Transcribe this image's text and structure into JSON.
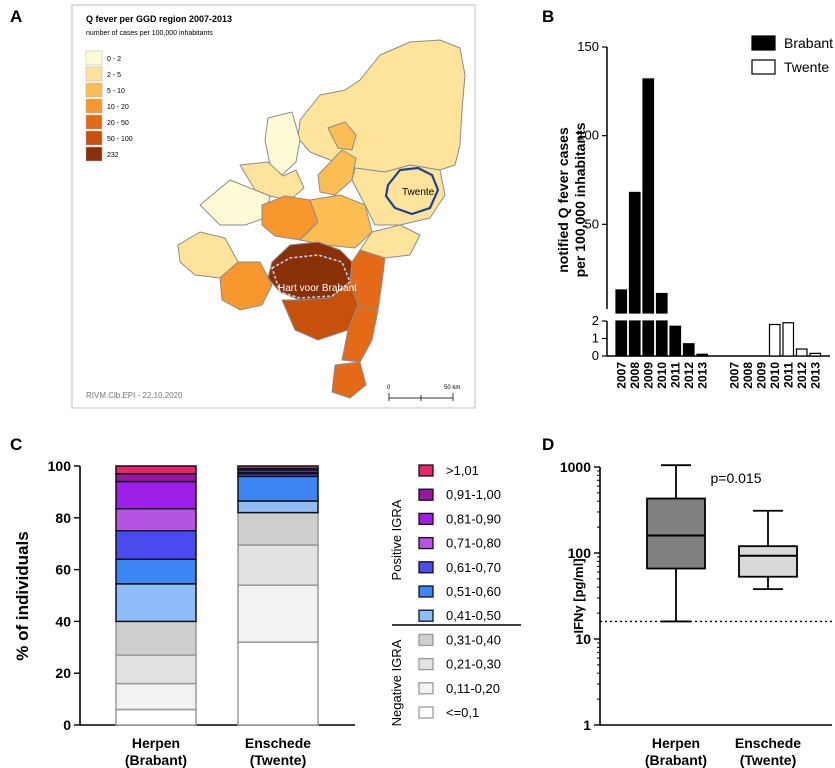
{
  "panel_letters": {
    "a": "A",
    "b": "B",
    "c": "C",
    "d": "D"
  },
  "map": {
    "title": "Q fever per GGD region 2007-2013",
    "subtitle": "number of cases per 100,000 inhabitants",
    "legend": [
      {
        "label": "0 - 2",
        "color": "#fffbd6"
      },
      {
        "label": "2 - 5",
        "color": "#fde49a"
      },
      {
        "label": "5 - 10",
        "color": "#fcbe53"
      },
      {
        "label": "10 - 20",
        "color": "#f7972e"
      },
      {
        "label": "20 - 50",
        "color": "#e46a17"
      },
      {
        "label": "50 - 100",
        "color": "#c7500b"
      },
      {
        "label": "232",
        "color": "#8a3007"
      }
    ],
    "label_twente": "Twente",
    "label_brabant": "Hart voor Brabant",
    "credit": "RIVM.Clb.EPI - 22.10.2020",
    "scale_start": "0",
    "scale_end": "50 km"
  },
  "chart_data": [
    {
      "panel": "B",
      "type": "bar",
      "ylabel": "notified Q fever cases\nper 100,000 inhabitants",
      "broken_axis": true,
      "ylim_lower": [
        0,
        2
      ],
      "ylim_upper": [
        0,
        150
      ],
      "yticks_lower": [
        0,
        1,
        2
      ],
      "yticks_upper": [
        50,
        100,
        150
      ],
      "categories": [
        "2007",
        "2008",
        "2009",
        "2010",
        "2011",
        "2012",
        "2013"
      ],
      "series": [
        {
          "name": "Brabant",
          "color": "#000000",
          "values": [
            13,
            68,
            132,
            11,
            1.7,
            0.7,
            0.1
          ]
        },
        {
          "name": "Twente",
          "color": "#ffffff",
          "values": [
            0,
            0,
            0,
            1.8,
            1.9,
            0.4,
            0.15
          ]
        }
      ]
    },
    {
      "panel": "C",
      "type": "bar",
      "stacked": true,
      "ylabel": "% of individuals",
      "ylim": [
        0,
        100
      ],
      "yticks": [
        0,
        20,
        40,
        60,
        80,
        100
      ],
      "categories": [
        "Herpen\n(Brabant)",
        "Enschede\n(Twente)"
      ],
      "group_labels": {
        "positive": "Positive IGRA",
        "negative": "Negative IGRA"
      },
      "series": [
        {
          "name": "<=0,1",
          "color": "#ffffff",
          "values": [
            6,
            32
          ]
        },
        {
          "name": "0,11-0,20",
          "color": "#f2f2f2",
          "values": [
            10,
            22
          ]
        },
        {
          "name": "0,21-0,30",
          "color": "#e2e2e2",
          "values": [
            11,
            15.5
          ]
        },
        {
          "name": "0,31-0,40",
          "color": "#cfcfcf",
          "values": [
            13,
            12.5
          ]
        },
        {
          "name": "0,41-0,50",
          "color": "#8fbdfa",
          "values": [
            14.5,
            4.5
          ]
        },
        {
          "name": "0,51-0,60",
          "color": "#3d85f2",
          "values": [
            9.5,
            9.5
          ]
        },
        {
          "name": "0,61-0,70",
          "color": "#4b4bf0",
          "values": [
            11,
            1
          ]
        },
        {
          "name": "0,71-0,80",
          "color": "#b553e3",
          "values": [
            8.5,
            0.5
          ]
        },
        {
          "name": "0,81-0,90",
          "color": "#9e1ee8",
          "values": [
            10.5,
            1
          ]
        },
        {
          "name": "0,91-1,00",
          "color": "#9a17a6",
          "values": [
            3,
            0.5
          ]
        },
        {
          "name": ">1,01",
          "color": "#e8246e",
          "values": [
            3,
            1
          ]
        }
      ]
    },
    {
      "panel": "D",
      "type": "box",
      "ylabel": "IFNγ [pg/ml]",
      "yscale": "log",
      "ylim": [
        1,
        1000
      ],
      "yticks": [
        1,
        10,
        100,
        1000
      ],
      "annotation": "p=0.015",
      "threshold": 16,
      "categories": [
        "Herpen\n(Brabant)",
        "Enschede\n(Twente)"
      ],
      "boxes": [
        {
          "min": 16,
          "q1": 66,
          "median": 160,
          "q3": 430,
          "max": 1050,
          "color": "#808080"
        },
        {
          "min": 38,
          "q1": 53,
          "median": 93,
          "q3": 120,
          "max": 310,
          "color": "#d9d9d9"
        }
      ]
    }
  ]
}
